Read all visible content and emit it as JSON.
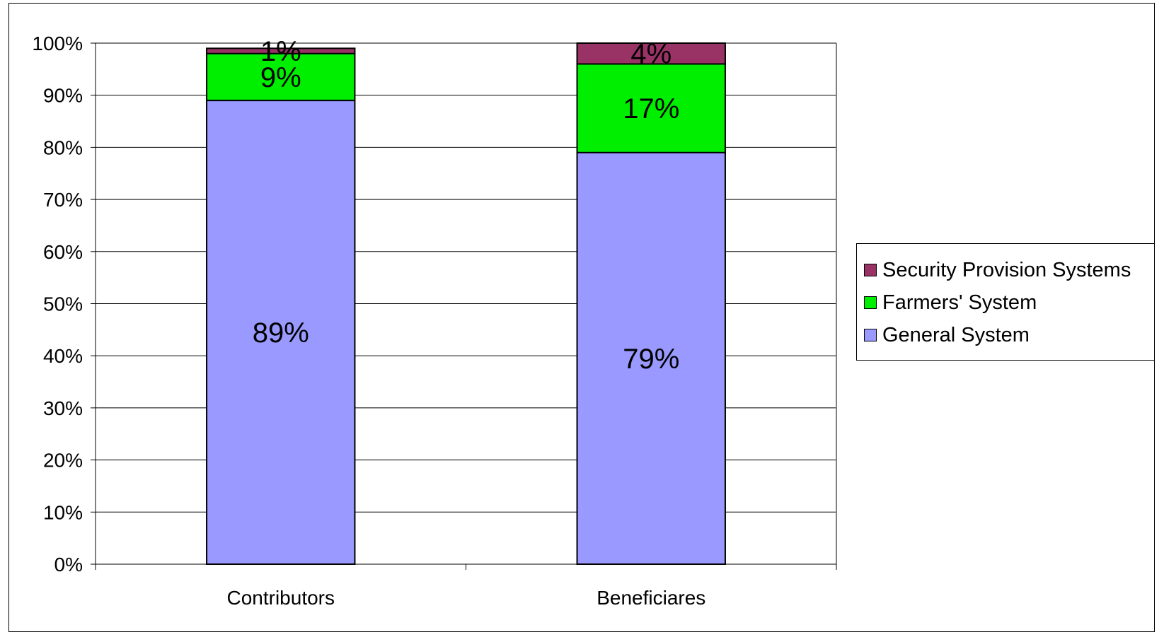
{
  "chart_data": {
    "type": "bar",
    "stacked": true,
    "percent": true,
    "categories": [
      "Contributors",
      "Beneficiares"
    ],
    "series": [
      {
        "name": "General System",
        "values": [
          89,
          79
        ],
        "labels": [
          "89%",
          "79%"
        ],
        "color": "#9999ff"
      },
      {
        "name": "Farmers' System",
        "values": [
          9,
          17
        ],
        "labels": [
          "9%",
          "17%"
        ],
        "color": "#00ee00"
      },
      {
        "name": "Security Provision Systems",
        "values": [
          1,
          4
        ],
        "labels": [
          "1%",
          "4%"
        ],
        "color": "#993366"
      }
    ],
    "ylim": [
      0,
      100
    ],
    "yticks": [
      "0%",
      "10%",
      "20%",
      "30%",
      "40%",
      "50%",
      "60%",
      "70%",
      "80%",
      "90%",
      "100%"
    ],
    "ytick_values": [
      0,
      10,
      20,
      30,
      40,
      50,
      60,
      70,
      80,
      90,
      100
    ],
    "grid": true,
    "legend_position": "right"
  }
}
